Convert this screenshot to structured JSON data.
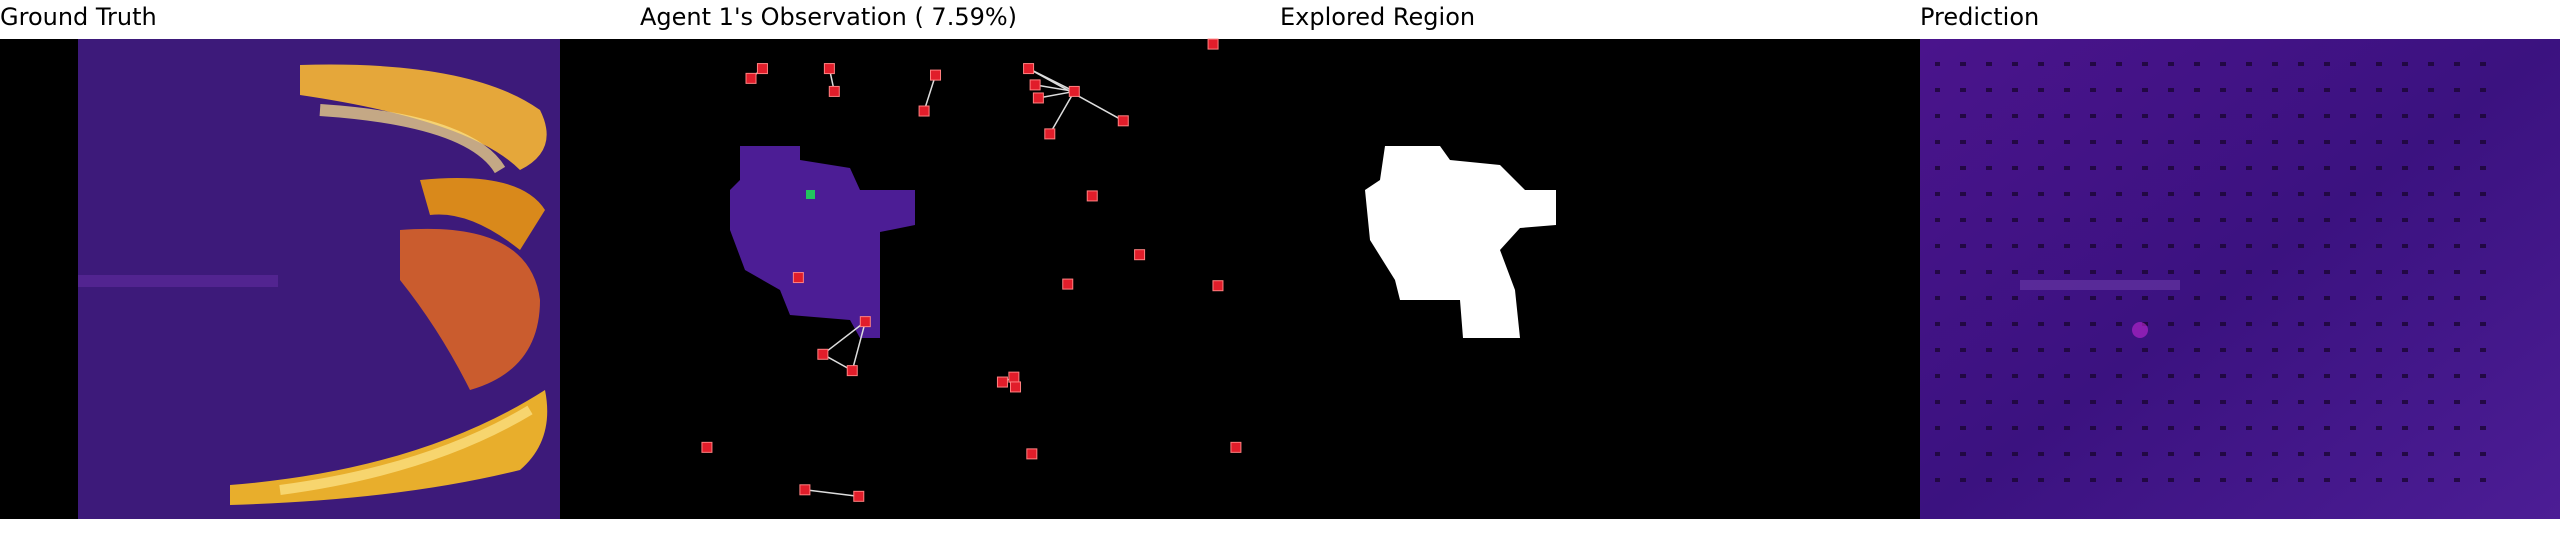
{
  "panels": [
    {
      "title": "Ground Truth"
    },
    {
      "title": "Agent 1's Observation ( 7.59%)"
    },
    {
      "title": "Explored Region"
    },
    {
      "title": "Prediction"
    }
  ]
}
